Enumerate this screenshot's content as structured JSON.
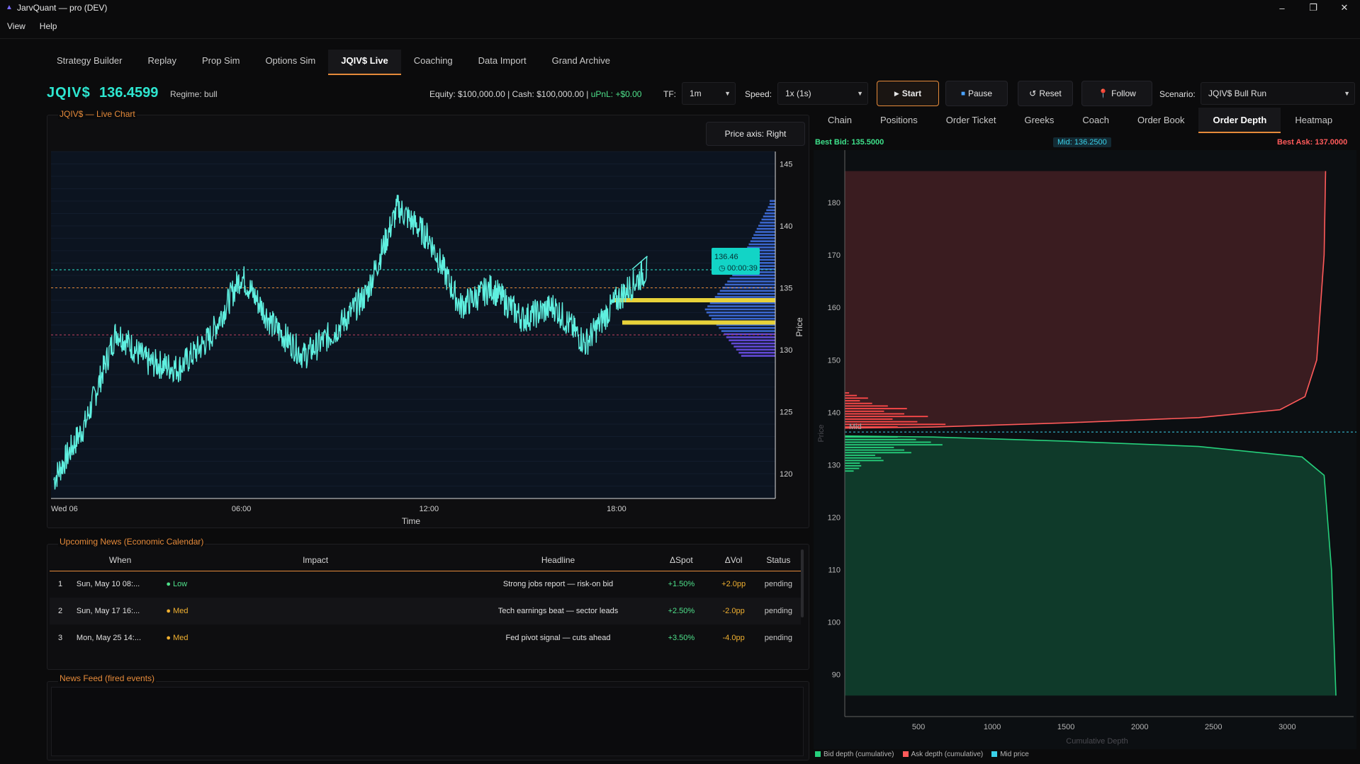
{
  "window": {
    "title": "JarvQuant — pro (DEV)",
    "min": "–",
    "max": "❐",
    "close": "✕"
  },
  "menu": [
    "View",
    "Help"
  ],
  "main_tabs": [
    "Strategy Builder",
    "Replay",
    "Prop Sim",
    "Options Sim",
    "JQIV$ Live",
    "Coaching",
    "Data Import",
    "Grand Archive"
  ],
  "header": {
    "ticker": "JQIV$",
    "price": "136.4599",
    "regime": "Regime: bull",
    "equity": "Equity: $100,000.00 | Cash: $100,000.00 | ",
    "upnl": "uPnL: +$0.00",
    "tf_label": "TF:",
    "tf_value": "1m",
    "speed_label": "Speed:",
    "speed_value": "1x (1s)",
    "start": "Start",
    "pause": "Pause",
    "reset": "Reset",
    "follow": "Follow",
    "scenario_label": "Scenario:",
    "scenario_value": "JQIV$ Bull Run"
  },
  "live_chart": {
    "section_title": "JQIV$ — Live Chart",
    "price_axis_btn": "Price axis: Right",
    "y_ticks": [
      "145",
      "140",
      "135",
      "130",
      "125",
      "120"
    ],
    "x_ticks": [
      "Wed 06",
      "06:00",
      "12:00",
      "18:00"
    ],
    "xlabel": "Time",
    "ylabel": "Price",
    "last_price_label": "136.46",
    "countdown": "00:00:39"
  },
  "news": {
    "section_title": "Upcoming News (Economic Calendar)",
    "headers": [
      "When",
      "Impact",
      "Headline",
      "ΔSpot",
      "ΔVol",
      "Status"
    ],
    "rows": [
      {
        "n": "1",
        "when": "Sun, May 10  08:...",
        "impact": "Low",
        "headline": "Strong jobs report — risk-on bid",
        "spot": "+1.50%",
        "vol": "+2.0pp",
        "status": "pending"
      },
      {
        "n": "2",
        "when": "Sun, May 17  16:...",
        "impact": "Med",
        "headline": "Tech earnings beat — sector leads",
        "spot": "+2.50%",
        "vol": "-2.0pp",
        "status": "pending"
      },
      {
        "n": "3",
        "when": "Mon, May 25  14:...",
        "impact": "Med",
        "headline": "Fed pivot signal — cuts ahead",
        "spot": "+3.50%",
        "vol": "-4.0pp",
        "status": "pending"
      }
    ]
  },
  "news_feed": {
    "section_title": "News Feed (fired events)"
  },
  "right_tabs": [
    "Chain",
    "Positions",
    "Order Ticket",
    "Greeks",
    "Coach",
    "Order Book",
    "Order Depth",
    "Heatmap"
  ],
  "depth": {
    "best_bid": "Best Bid: 135.5000",
    "mid": "Mid: 136.2500",
    "best_ask": "Best Ask: 137.0000",
    "mid_tag": "Mid",
    "ylabel": "Price",
    "xlabel": "Cumulative Depth",
    "legend": [
      "Bid depth (cumulative)",
      "Ask depth (cumulative)",
      "Mid price"
    ]
  },
  "colors": {
    "accent": "#e58a3a",
    "teal": "#2ee6d0",
    "bid": "#26d07c",
    "ask": "#ff5a5a",
    "mid": "#3ad0e8"
  },
  "chart_data": [
    {
      "type": "line",
      "title": "JQIV$ — Live Chart",
      "xlabel": "Time",
      "ylabel": "Price",
      "x": [
        "Wed 06 00:00",
        "01:00",
        "02:00",
        "03:00",
        "04:00",
        "05:00",
        "06:00",
        "07:00",
        "08:00",
        "09:00",
        "10:00",
        "11:00",
        "12:00",
        "13:00",
        "14:00",
        "15:00",
        "16:00",
        "17:00",
        "18:00",
        "18:30"
      ],
      "series": [
        {
          "name": "JQIV$",
          "values": [
            119.5,
            124,
            131.5,
            129,
            128.5,
            131,
            136,
            132,
            129.5,
            131.5,
            134.5,
            141.5,
            139,
            133.5,
            135,
            132.5,
            133.5,
            130.5,
            134,
            136.5
          ]
        }
      ],
      "ylim": [
        118,
        146
      ],
      "hlines": [
        136.46,
        135,
        131.2
      ],
      "volume_profile_peaks": [
        134.0,
        132.2
      ]
    },
    {
      "type": "area",
      "title": "",
      "xlabel": "Cumulative Depth",
      "ylabel": "Price",
      "x_ticks": [
        500,
        1000,
        1500,
        2000,
        2500,
        3000
      ],
      "y_ticks": [
        90,
        100,
        110,
        120,
        130,
        140,
        150,
        160,
        170,
        180
      ],
      "xlim": [
        0,
        3450
      ],
      "ylim": [
        82,
        190
      ],
      "series": [
        {
          "name": "Bid depth (cumulative)",
          "points": [
            [
              0,
              135.5
            ],
            [
              600,
              135.3
            ],
            [
              1500,
              134.5
            ],
            [
              2400,
              133.5
            ],
            [
              3100,
              131.5
            ],
            [
              3250,
              128
            ],
            [
              3300,
              110
            ],
            [
              3330,
              86
            ]
          ]
        },
        {
          "name": "Ask depth (cumulative)",
          "points": [
            [
              0,
              137
            ],
            [
              600,
              137.2
            ],
            [
              1500,
              138
            ],
            [
              2400,
              139
            ],
            [
              2950,
              140.5
            ],
            [
              3120,
              143
            ],
            [
              3200,
              150
            ],
            [
              3250,
              170
            ],
            [
              3260,
              186
            ]
          ]
        },
        {
          "name": "Mid price",
          "value": 136.25
        }
      ]
    }
  ]
}
